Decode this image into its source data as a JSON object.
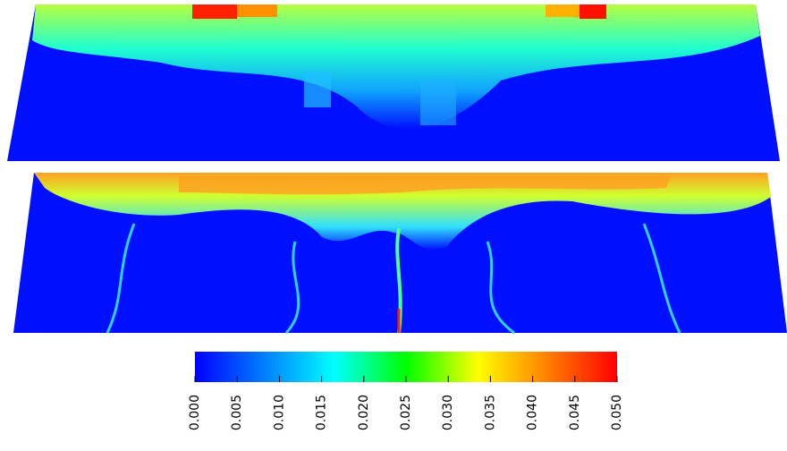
{
  "colorbar": {
    "xlim": [
      0,
      0.05
    ],
    "ticks": [
      {
        "value": 0,
        "label": "0.000"
      },
      {
        "value": 0.005,
        "label": "0.005"
      },
      {
        "value": 0.01,
        "label": "0.010"
      },
      {
        "value": 0.015,
        "label": "0.015"
      },
      {
        "value": 0.02,
        "label": "0.020"
      },
      {
        "value": 0.025,
        "label": "0.025"
      },
      {
        "value": 0.03,
        "label": "0.030"
      },
      {
        "value": 0.035,
        "label": "0.035"
      },
      {
        "value": 0.04,
        "label": "0.040"
      },
      {
        "value": 0.045,
        "label": "0.045"
      },
      {
        "value": 0.05,
        "label": "0.050"
      }
    ]
  }
}
